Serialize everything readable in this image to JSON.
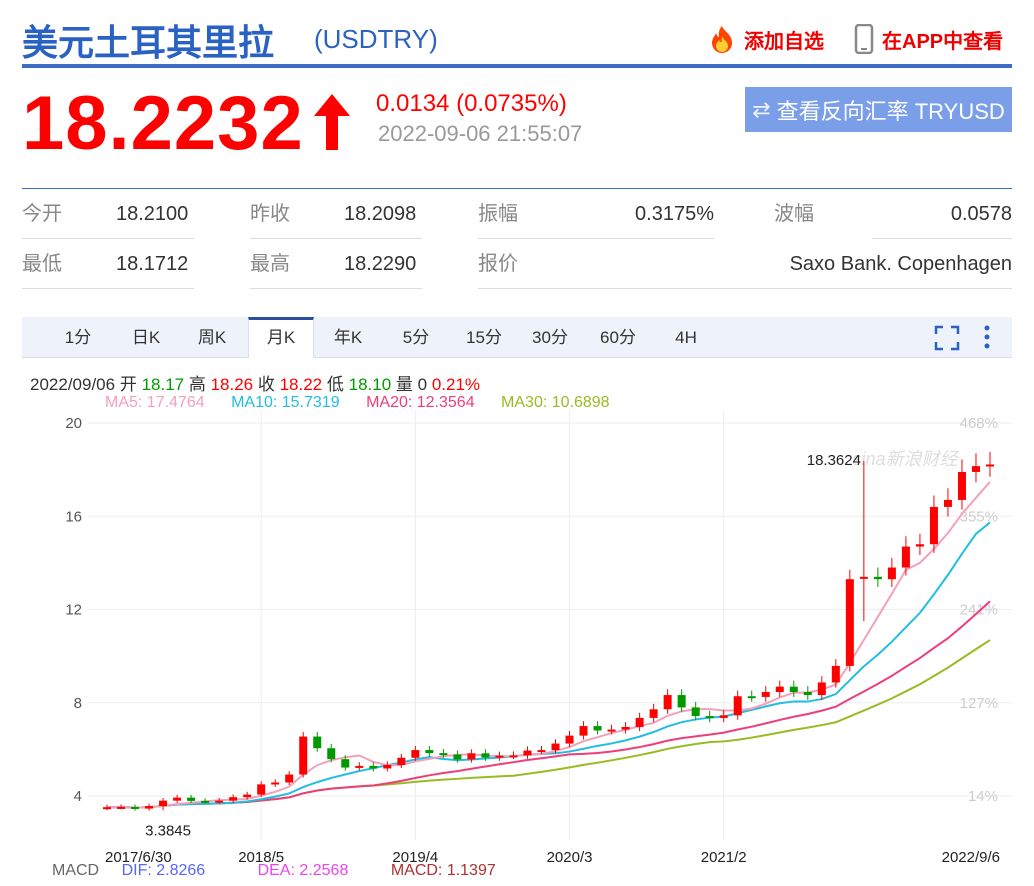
{
  "header": {
    "title": "美元土耳其里拉",
    "code": "(USDTRY)",
    "add_watch": "添加自选",
    "view_app": "在APP中查看",
    "icons": [
      "fire-icon",
      "phone-icon"
    ]
  },
  "quote": {
    "price": "18.2232",
    "change": "0.0134 (0.0735%)",
    "time": "2022-09-06 21:55:07",
    "reverse_button": "查看反向汇率 TRYUSD",
    "direction": "up"
  },
  "stats": [
    {
      "label": "今开",
      "value": "18.2100"
    },
    {
      "label": "昨收",
      "value": "18.2098"
    },
    {
      "label": "振幅",
      "value": "0.3175%"
    },
    {
      "label": "波幅",
      "value": "0.0578"
    },
    {
      "label": "最低",
      "value": "18.1712"
    },
    {
      "label": "最高",
      "value": "18.2290"
    },
    {
      "label": "报价",
      "value": "Saxo Bank. Copenhagen"
    }
  ],
  "tabs": [
    "1分",
    "日K",
    "周K",
    "月K",
    "年K",
    "5分",
    "15分",
    "30分",
    "60分",
    "4H"
  ],
  "active_tab": "月K",
  "info": {
    "date": "2022/09/06",
    "open_l": "开",
    "open": "18.17",
    "high_l": "高",
    "high": "18.26",
    "close_l": "收",
    "close": "18.22",
    "low_l": "低",
    "low": "18.10",
    "vol_l": "量",
    "vol": "0",
    "pct": "0.21%"
  },
  "ma": {
    "ma5": "MA5: 17.4764",
    "ma10": "MA10: 15.7319",
    "ma20": "MA20: 12.3564",
    "ma30": "MA30: 10.6898"
  },
  "macd": {
    "label": "MACD",
    "dif": "DIF: 2.8266",
    "dea": "DEA: 2.2568",
    "macd": "MACD: 1.1397"
  },
  "colors": {
    "up": "#f00",
    "down": "#090",
    "ma5": "#f4a0b8",
    "ma10": "#22bde0",
    "ma20": "#ee3e78",
    "ma30": "#99bb22"
  },
  "chart_data": {
    "type": "candlestick",
    "watermark": "sina新浪财经",
    "ylim": [
      3,
      20
    ],
    "yticks": [
      4,
      8,
      12,
      16,
      20
    ],
    "pct_ticks": [
      "14%",
      "127%",
      "241%",
      "355%",
      "468%"
    ],
    "xticks": [
      {
        "i": 0,
        "label": "2017/6/30"
      },
      {
        "i": 11,
        "label": "2018/5"
      },
      {
        "i": 22,
        "label": "2019/4"
      },
      {
        "i": 33,
        "label": "2020/3"
      },
      {
        "i": 44,
        "label": "2021/2"
      },
      {
        "i": 63,
        "label": "2022/9/6"
      }
    ],
    "max_label": {
      "i": 54,
      "value": "18.3624"
    },
    "min_label": {
      "i": 4,
      "value": "3.3845"
    },
    "closes": [
      3.52,
      3.53,
      3.46,
      3.57,
      3.8,
      3.93,
      3.79,
      3.76,
      3.8,
      3.95,
      4.06,
      4.5,
      4.58,
      4.92,
      6.55,
      6.05,
      5.58,
      5.22,
      5.29,
      5.18,
      5.33,
      5.64,
      5.97,
      5.84,
      5.78,
      5.57,
      5.83,
      5.65,
      5.73,
      5.74,
      5.95,
      5.97,
      6.25,
      6.59,
      7.0,
      6.81,
      6.85,
      6.96,
      7.35,
      7.72,
      8.33,
      7.8,
      7.43,
      7.35,
      7.46,
      8.28,
      8.25,
      8.46,
      8.69,
      8.46,
      8.33,
      8.87,
      9.58,
      13.3,
      13.4,
      13.3,
      13.8,
      14.7,
      14.8,
      16.4,
      16.7,
      17.9,
      18.15,
      18.22
    ]
  }
}
